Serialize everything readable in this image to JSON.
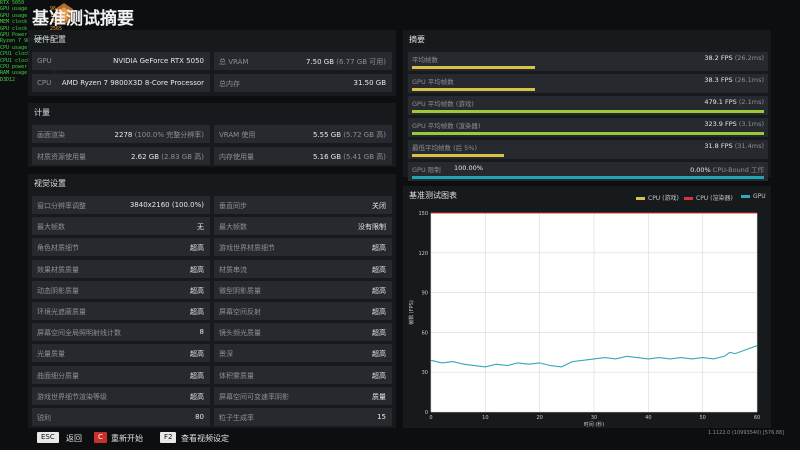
{
  "overlay": [
    {
      "k": "RTX 5050",
      "v": ""
    },
    {
      "k": "GPU usage",
      "v": "96 %"
    },
    {
      "k": "GPU usage",
      "v": "100 %"
    },
    {
      "k": "MEM clock",
      "v": "1000"
    },
    {
      "k": "GPU clock",
      "v": "2565"
    },
    {
      "k": "GPU Power",
      "v": "103.1"
    },
    {
      "k": "Ryzen 7 9800X3D",
      "v": ""
    },
    {
      "k": "CPU usage",
      "v": "7 %"
    },
    {
      "k": "CPU1 clock",
      "v": "5025"
    },
    {
      "k": "CPU1 clock",
      "v": "5025"
    },
    {
      "k": "CPU power",
      "v": "32.6"
    },
    {
      "k": "RAM usage",
      "v": "3072"
    },
    {
      "k": "D3D12",
      "v": "64"
    }
  ],
  "page": {
    "title": "基准测试摘要"
  },
  "hardware": {
    "title": "硬件配置",
    "gpu_label": "GPU",
    "gpu_value": "NVIDIA GeForce RTX 5050",
    "vram_label": "总 VRAM",
    "vram_value": "7.50 GB",
    "vram_sub": "(6.77 GB 可用)",
    "cpu_label": "CPU",
    "cpu_value": "AMD Ryzen 7 9800X3D 8-Core Processor",
    "mem_label": "总内存",
    "mem_value": "31.50 GB"
  },
  "metrics": {
    "title": "计量",
    "rows": [
      {
        "l1": "画面渲染",
        "v1": "2278",
        "s1": "(100.0% 完整分辨率)",
        "l2": "VRAM 使用",
        "v2": "5.55 GB",
        "s2": "(5.72 GB 高)"
      },
      {
        "l1": "材质资源使用量",
        "v1": "2.62 GB",
        "s1": "(2.83 GB 高)",
        "l2": "内存使用量",
        "v2": "5.16 GB",
        "s2": "(5.41 GB 高)"
      }
    ]
  },
  "visual": {
    "title": "视觉设置",
    "rows": [
      {
        "l1": "窗口分辨率调整",
        "v1": "3840x2160 (100.0%)",
        "l2": "垂直同步",
        "v2": "关闭"
      },
      {
        "l1": "最大帧数",
        "v1": "无",
        "l2": "最大帧数",
        "v2": "没有限制"
      },
      {
        "l1": "角色材质细节",
        "v1": "超高",
        "l2": "游戏世界材质细节",
        "v2": "超高"
      },
      {
        "l1": "效果材质质量",
        "v1": "超高",
        "l2": "材质串流",
        "v2": "超高"
      },
      {
        "l1": "动态阴影质量",
        "v1": "超高",
        "l2": "微型阴影质量",
        "v2": "超高"
      },
      {
        "l1": "环境光遮蔽质量",
        "v1": "超高",
        "l2": "屏幕空间反射",
        "v2": "超高"
      },
      {
        "l1": "屏幕空间全局照明射线计数",
        "v1": "8",
        "l2": "镜头频光质量",
        "v2": "超高"
      },
      {
        "l1": "光量质量",
        "v1": "超高",
        "l2": "景深",
        "v2": "超高"
      },
      {
        "l1": "曲面细分质量",
        "v1": "超高",
        "l2": "体积雾质量",
        "v2": "超高"
      },
      {
        "l1": "游戏世界细节渲染等级",
        "v1": "超高",
        "l2": "屏幕空间可变速率阴影",
        "v2": "质量"
      },
      {
        "l1": "锐利",
        "v1": "80",
        "l2": "粒子生成率",
        "v2": "15"
      }
    ]
  },
  "summary": {
    "title": "摘要",
    "rows": [
      {
        "label": "平均帧数",
        "value": "38.2 FPS",
        "sub": "(26.2ms)",
        "color": "#d8c24a",
        "fill": 0.35
      },
      {
        "label": "GPU 平均帧数",
        "value": "38.3 FPS",
        "sub": "(26.1ms)",
        "color": "#d8c24a",
        "fill": 0.35
      },
      {
        "label": "GPU 平均帧数 (游戏)",
        "value": "479.1 FPS",
        "sub": "(2.1ms)",
        "color": "#9cc83c",
        "fill": 1.0
      },
      {
        "label": "GPU 平均帧数 (渲染器)",
        "value": "323.9 FPS",
        "sub": "(3.1ms)",
        "color": "#9cc83c",
        "fill": 1.0
      },
      {
        "label": "最低平均帧数 (后 5%)",
        "value": "31.8 FPS",
        "sub": "(31.4ms)",
        "color": "#d8c24a",
        "fill": 0.26
      },
      {
        "label": "GPU 限制",
        "pct_left": "100.00%",
        "value": "0.00%",
        "sub": "CPU-Bound 工作",
        "color": "#1ea6b8",
        "fill": 1.0
      }
    ]
  },
  "graph": {
    "title": "基准测试图表",
    "legend": [
      {
        "label": "CPU (游戏)",
        "color": "#d8c24a"
      },
      {
        "label": "CPU (渲染器)",
        "color": "#d8343a"
      },
      {
        "label": "GPU",
        "color": "#34a8b8"
      }
    ],
    "ylabel": "帧数 (FPS)",
    "xlabel": "时间 (秒)",
    "version": "1.1122.0 (10993540) [576.88]"
  },
  "chart_data": {
    "type": "line",
    "xlabel": "时间 (秒)",
    "ylabel": "帧数 (FPS)",
    "xlim": [
      0,
      60
    ],
    "ylim": [
      0,
      150
    ],
    "xticks": [
      0,
      10,
      20,
      30,
      40,
      50,
      60
    ],
    "yticks": [
      0,
      30,
      60,
      90,
      120,
      150
    ],
    "series": [
      {
        "name": "CPU (游戏)",
        "color": "#d8c24a",
        "points": [
          [
            0,
            150
          ],
          [
            60,
            150
          ]
        ]
      },
      {
        "name": "CPU (渲染器)",
        "color": "#d8343a",
        "points": [
          [
            0,
            150
          ],
          [
            60,
            150
          ]
        ]
      },
      {
        "name": "GPU",
        "color": "#34a8b8",
        "points": [
          [
            0,
            39
          ],
          [
            2,
            37
          ],
          [
            4,
            38
          ],
          [
            6,
            36
          ],
          [
            8,
            35
          ],
          [
            10,
            34
          ],
          [
            12,
            36
          ],
          [
            14,
            35
          ],
          [
            16,
            37
          ],
          [
            18,
            36
          ],
          [
            20,
            37
          ],
          [
            22,
            35
          ],
          [
            24,
            34
          ],
          [
            26,
            38
          ],
          [
            28,
            39
          ],
          [
            30,
            40
          ],
          [
            32,
            41
          ],
          [
            34,
            40
          ],
          [
            36,
            42
          ],
          [
            38,
            41
          ],
          [
            40,
            40
          ],
          [
            42,
            41
          ],
          [
            44,
            40
          ],
          [
            46,
            41
          ],
          [
            48,
            40
          ],
          [
            50,
            41
          ],
          [
            52,
            40
          ],
          [
            54,
            42
          ],
          [
            55,
            45
          ],
          [
            56,
            44
          ],
          [
            58,
            47
          ],
          [
            60,
            50
          ]
        ]
      }
    ]
  },
  "footer": {
    "esc_key": "ESC",
    "esc_label": "返回",
    "c_key": "C",
    "c_label": "重新开始",
    "f2_key": "F2",
    "f2_label": "查看视频设定"
  }
}
